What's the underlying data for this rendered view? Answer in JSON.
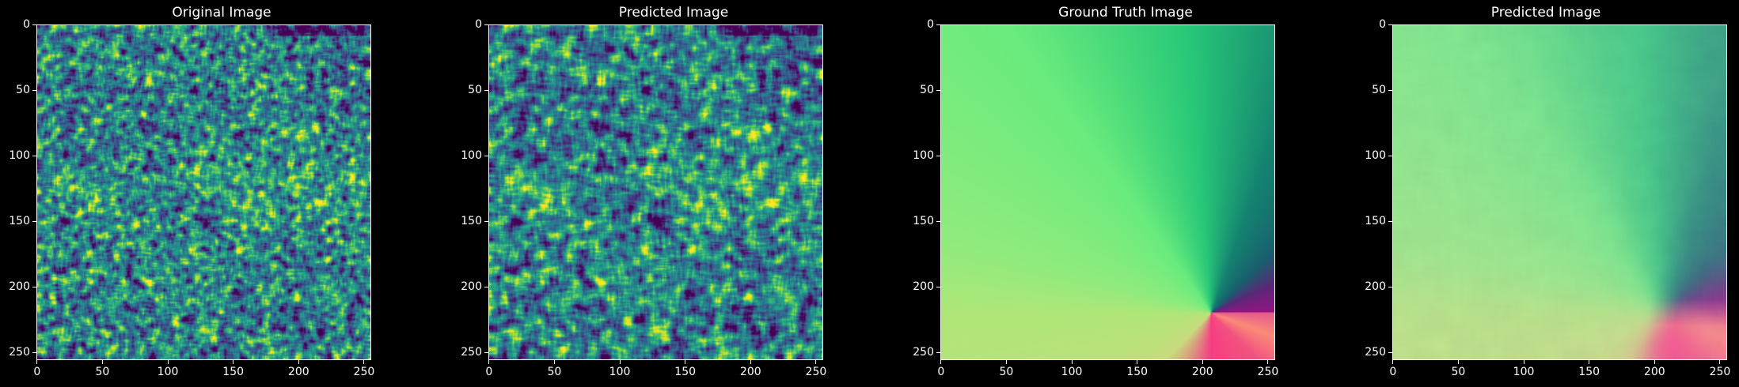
{
  "chart_data": [
    {
      "type": "heatmap",
      "title": "Original Image",
      "colormap": "viridis",
      "content": "noise",
      "xlim": [
        0,
        255
      ],
      "ylim": [
        255,
        0
      ],
      "xticks": [
        0,
        50,
        100,
        150,
        200,
        250
      ],
      "yticks": [
        0,
        50,
        100,
        150,
        200,
        250
      ]
    },
    {
      "type": "heatmap",
      "title": "Predicted Image",
      "colormap": "viridis",
      "content": "noise-smooth",
      "xlim": [
        0,
        255
      ],
      "ylim": [
        255,
        0
      ],
      "xticks": [
        0,
        50,
        100,
        150,
        200,
        250
      ],
      "yticks": [
        0,
        50,
        100,
        150,
        200,
        250
      ]
    },
    {
      "type": "heatmap",
      "title": "Ground Truth Image",
      "colormap": "angular",
      "content": "angle-field",
      "center": [
        207,
        220
      ],
      "xlim": [
        0,
        255
      ],
      "ylim": [
        255,
        0
      ],
      "xticks": [
        0,
        50,
        100,
        150,
        200,
        250
      ],
      "yticks": [
        0,
        50,
        100,
        150,
        200,
        250
      ]
    },
    {
      "type": "heatmap",
      "title": "Predicted Image",
      "colormap": "angular",
      "content": "angle-field-blurred",
      "center": [
        207,
        220
      ],
      "xlim": [
        0,
        255
      ],
      "ylim": [
        255,
        0
      ],
      "xticks": [
        0,
        50,
        100,
        150,
        200,
        250
      ],
      "yticks": [
        0,
        50,
        100,
        150,
        200,
        250
      ]
    }
  ]
}
